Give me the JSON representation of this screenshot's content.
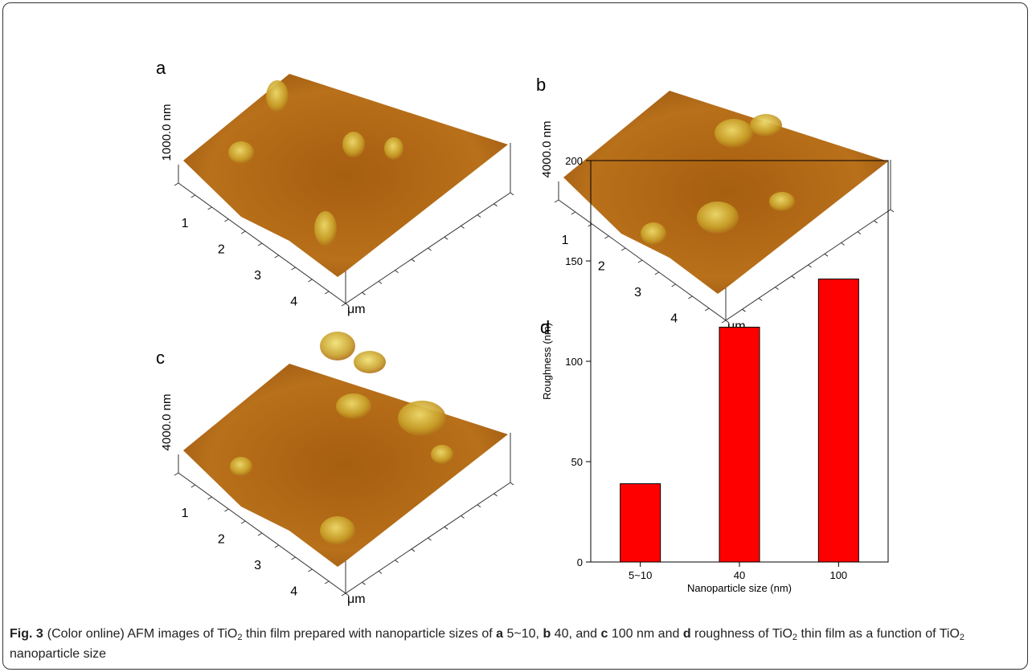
{
  "panels": [
    {
      "letter": "a",
      "z_label": "1000.0 nm",
      "ticks": [
        "1",
        "2",
        "3",
        "4"
      ],
      "unit": "μm"
    },
    {
      "letter": "b",
      "z_label": "4000.0 nm",
      "ticks": [
        "1",
        "2",
        "3",
        "4"
      ],
      "unit": "μm"
    },
    {
      "letter": "c",
      "z_label": "4000.0 nm",
      "ticks": [
        "1",
        "2",
        "3",
        "4"
      ],
      "unit": "μm"
    }
  ],
  "chart_data": {
    "type": "bar",
    "letter": "d",
    "categories": [
      "5~10",
      "40",
      "100"
    ],
    "values": [
      39,
      117,
      141
    ],
    "color": "#ff0000",
    "x_label": "Nanoparticle size (nm)",
    "y_label": "Roughness (nm)",
    "ylim": [
      0,
      200
    ],
    "yticks": [
      0,
      50,
      100,
      150,
      200
    ]
  },
  "caption": {
    "label": "Fig. 3",
    "parts": [
      {
        "text": "(Color online) AFM images of TiO",
        "style": "normal"
      },
      {
        "text": "2",
        "style": "sub"
      },
      {
        "text": " thin film prepared with nanoparticle sizes of ",
        "style": "normal"
      },
      {
        "text": "a",
        "style": "bold"
      },
      {
        "text": " 5~10, ",
        "style": "normal"
      },
      {
        "text": "b",
        "style": "bold"
      },
      {
        "text": " 40, and ",
        "style": "normal"
      },
      {
        "text": "c",
        "style": "bold"
      },
      {
        "text": " 100 nm and ",
        "style": "normal"
      },
      {
        "text": "d",
        "style": "bold"
      },
      {
        "text": " roughness of TiO",
        "style": "normal"
      },
      {
        "text": "2",
        "style": "sub"
      },
      {
        "text": " thin film as a function of TiO",
        "style": "normal"
      },
      {
        "text": "2",
        "style": "sub"
      },
      {
        "text": " nanoparticle size",
        "style": "normal"
      }
    ]
  }
}
